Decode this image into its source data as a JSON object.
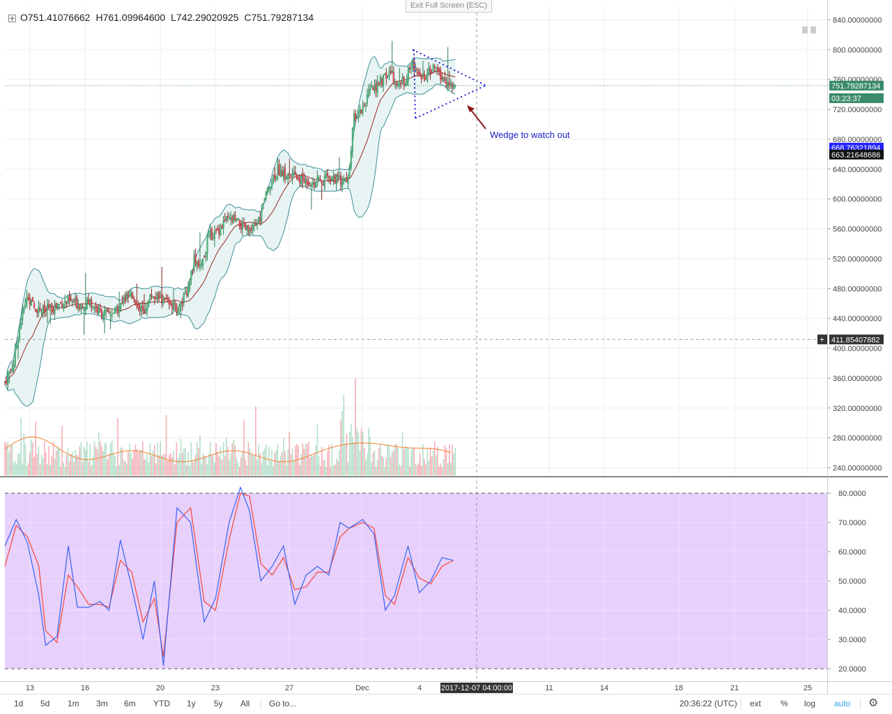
{
  "header": {
    "ohlc": [
      {
        "label": "O",
        "value": "751.41076662"
      },
      {
        "label": "H",
        "value": "761.09964600"
      },
      {
        "label": "L",
        "value": "742.29020925"
      },
      {
        "label": "C",
        "value": "751.79287134"
      }
    ],
    "exit_fullscreen": "Exit Full Screen (ESC)"
  },
  "colors": {
    "up": "#53b987",
    "down": "#eb4d5c",
    "bb": "#3a8f98",
    "bb_fill": "#e8f4f3",
    "mid": "#9c2626",
    "vol_ma": "#f0822e",
    "stoch_k": "#3863f4",
    "stoch_d": "#f4473a",
    "stoch_bg": "#e7d0fb",
    "wedge": "#1c1cd6",
    "arrow": "#8b1a1a",
    "last_price": "#3b8b6b",
    "blue_label": "#2525ff",
    "black_label": "#111111"
  },
  "price_axis": {
    "ticks": [
      "840.00000000",
      "800.00000000",
      "760.00000000",
      "720.00000000",
      "680.00000000",
      "640.00000000",
      "600.00000000",
      "560.00000000",
      "520.00000000",
      "480.00000000",
      "440.00000000",
      "400.00000000",
      "360.00000000",
      "320.00000000",
      "280.00000000",
      "240.00000000"
    ],
    "labels": {
      "last": "751.79287134",
      "countdown": "03:23:37",
      "blue": "668.76321894",
      "black": "663.21648686",
      "cursor": "411.85407882"
    }
  },
  "stoch_axis": {
    "ticks": [
      "80.0000",
      "70.0000",
      "60.0000",
      "50.0000",
      "40.0000",
      "30.0000",
      "20.0000"
    ]
  },
  "time_axis": {
    "ticks": [
      "13",
      "16",
      "20",
      "23",
      "27",
      "Dec",
      "4",
      "11",
      "14",
      "18",
      "21",
      "25"
    ],
    "cursor_label": "2017-12-07 04:00:00"
  },
  "annotation": {
    "text": "Wedge to watch out"
  },
  "bottom_bar": {
    "ranges": [
      "1d",
      "5d",
      "1m",
      "3m",
      "6m",
      "YTD",
      "1y",
      "5y",
      "All"
    ],
    "goto": "Go to...",
    "clock": "20:36:22 (UTC)",
    "right_buttons": [
      "ext",
      "%",
      "log",
      "auto"
    ]
  },
  "chart_data": {
    "type": "candlestick",
    "price_range": [
      220,
      850
    ],
    "stoch_range": [
      15,
      85
    ],
    "cursor_price": 411.85407882,
    "last_price": 751.79287134,
    "close_points": [
      [
        0,
        355
      ],
      [
        6,
        380
      ],
      [
        10,
        430
      ],
      [
        15,
        470
      ],
      [
        20,
        455
      ],
      [
        26,
        450
      ],
      [
        33,
        455
      ],
      [
        40,
        462
      ],
      [
        46,
        462
      ],
      [
        52,
        458
      ],
      [
        58,
        462
      ],
      [
        64,
        450
      ],
      [
        70,
        445
      ],
      [
        76,
        450
      ],
      [
        82,
        465
      ],
      [
        88,
        470
      ],
      [
        94,
        448
      ],
      [
        100,
        472
      ],
      [
        106,
        466
      ],
      [
        112,
        462
      ],
      [
        118,
        452
      ],
      [
        124,
        475
      ],
      [
        129,
        520
      ],
      [
        134,
        510
      ],
      [
        139,
        550
      ],
      [
        144,
        555
      ],
      [
        150,
        570
      ],
      [
        156,
        572
      ],
      [
        162,
        563
      ],
      [
        168,
        555
      ],
      [
        174,
        575
      ],
      [
        180,
        620
      ],
      [
        186,
        640
      ],
      [
        192,
        630
      ],
      [
        198,
        630
      ],
      [
        204,
        625
      ],
      [
        210,
        622
      ],
      [
        216,
        624
      ],
      [
        222,
        630
      ],
      [
        228,
        625
      ],
      [
        234,
        625
      ],
      [
        238,
        710
      ],
      [
        243,
        720
      ],
      [
        248,
        740
      ],
      [
        253,
        752
      ],
      [
        258,
        760
      ],
      [
        263,
        770
      ],
      [
        268,
        752
      ],
      [
        273,
        760
      ],
      [
        278,
        782
      ],
      [
        283,
        765
      ],
      [
        288,
        766
      ],
      [
        293,
        776
      ],
      [
        298,
        762
      ],
      [
        303,
        752
      ],
      [
        307,
        750
      ]
    ],
    "stoch_k": [
      [
        0,
        62
      ],
      [
        5,
        71
      ],
      [
        10,
        63
      ],
      [
        15,
        45
      ],
      [
        18,
        28
      ],
      [
        23,
        31
      ],
      [
        28,
        62
      ],
      [
        32,
        41
      ],
      [
        37,
        41
      ],
      [
        42,
        43
      ],
      [
        46,
        40
      ],
      [
        51,
        64
      ],
      [
        56,
        48
      ],
      [
        61,
        30
      ],
      [
        66,
        50
      ],
      [
        70,
        21
      ],
      [
        76,
        75
      ],
      [
        82,
        70
      ],
      [
        88,
        36
      ],
      [
        93,
        44
      ],
      [
        99,
        70
      ],
      [
        104,
        82
      ],
      [
        108,
        74
      ],
      [
        113,
        50
      ],
      [
        118,
        55
      ],
      [
        123,
        62
      ],
      [
        128,
        42
      ],
      [
        133,
        52
      ],
      [
        138,
        55
      ],
      [
        143,
        52
      ],
      [
        148,
        70
      ],
      [
        152,
        68
      ],
      [
        158,
        71
      ],
      [
        163,
        66
      ],
      [
        168,
        40
      ],
      [
        172,
        45
      ],
      [
        178,
        62
      ],
      [
        183,
        46
      ],
      [
        188,
        50
      ],
      [
        193,
        58
      ],
      [
        198,
        57
      ]
    ],
    "stoch_d": [
      [
        0,
        55
      ],
      [
        5,
        69
      ],
      [
        10,
        65
      ],
      [
        15,
        55
      ],
      [
        18,
        33
      ],
      [
        23,
        29
      ],
      [
        28,
        52
      ],
      [
        32,
        48
      ],
      [
        37,
        42
      ],
      [
        42,
        42
      ],
      [
        46,
        41
      ],
      [
        51,
        57
      ],
      [
        56,
        53
      ],
      [
        61,
        36
      ],
      [
        66,
        44
      ],
      [
        70,
        24
      ],
      [
        76,
        70
      ],
      [
        82,
        75
      ],
      [
        88,
        43
      ],
      [
        93,
        40
      ],
      [
        99,
        64
      ],
      [
        104,
        80
      ],
      [
        108,
        79
      ],
      [
        113,
        56
      ],
      [
        118,
        52
      ],
      [
        123,
        58
      ],
      [
        128,
        47
      ],
      [
        133,
        48
      ],
      [
        138,
        53
      ],
      [
        143,
        53
      ],
      [
        148,
        65
      ],
      [
        152,
        68
      ],
      [
        158,
        70
      ],
      [
        163,
        68
      ],
      [
        168,
        45
      ],
      [
        172,
        42
      ],
      [
        178,
        58
      ],
      [
        183,
        51
      ],
      [
        188,
        49
      ],
      [
        193,
        55
      ],
      [
        198,
        57
      ]
    ],
    "wedge": {
      "upper_start": [
        592,
        800
      ],
      "lower_start": [
        596,
        708
      ],
      "apex": [
        697,
        752
      ]
    }
  }
}
